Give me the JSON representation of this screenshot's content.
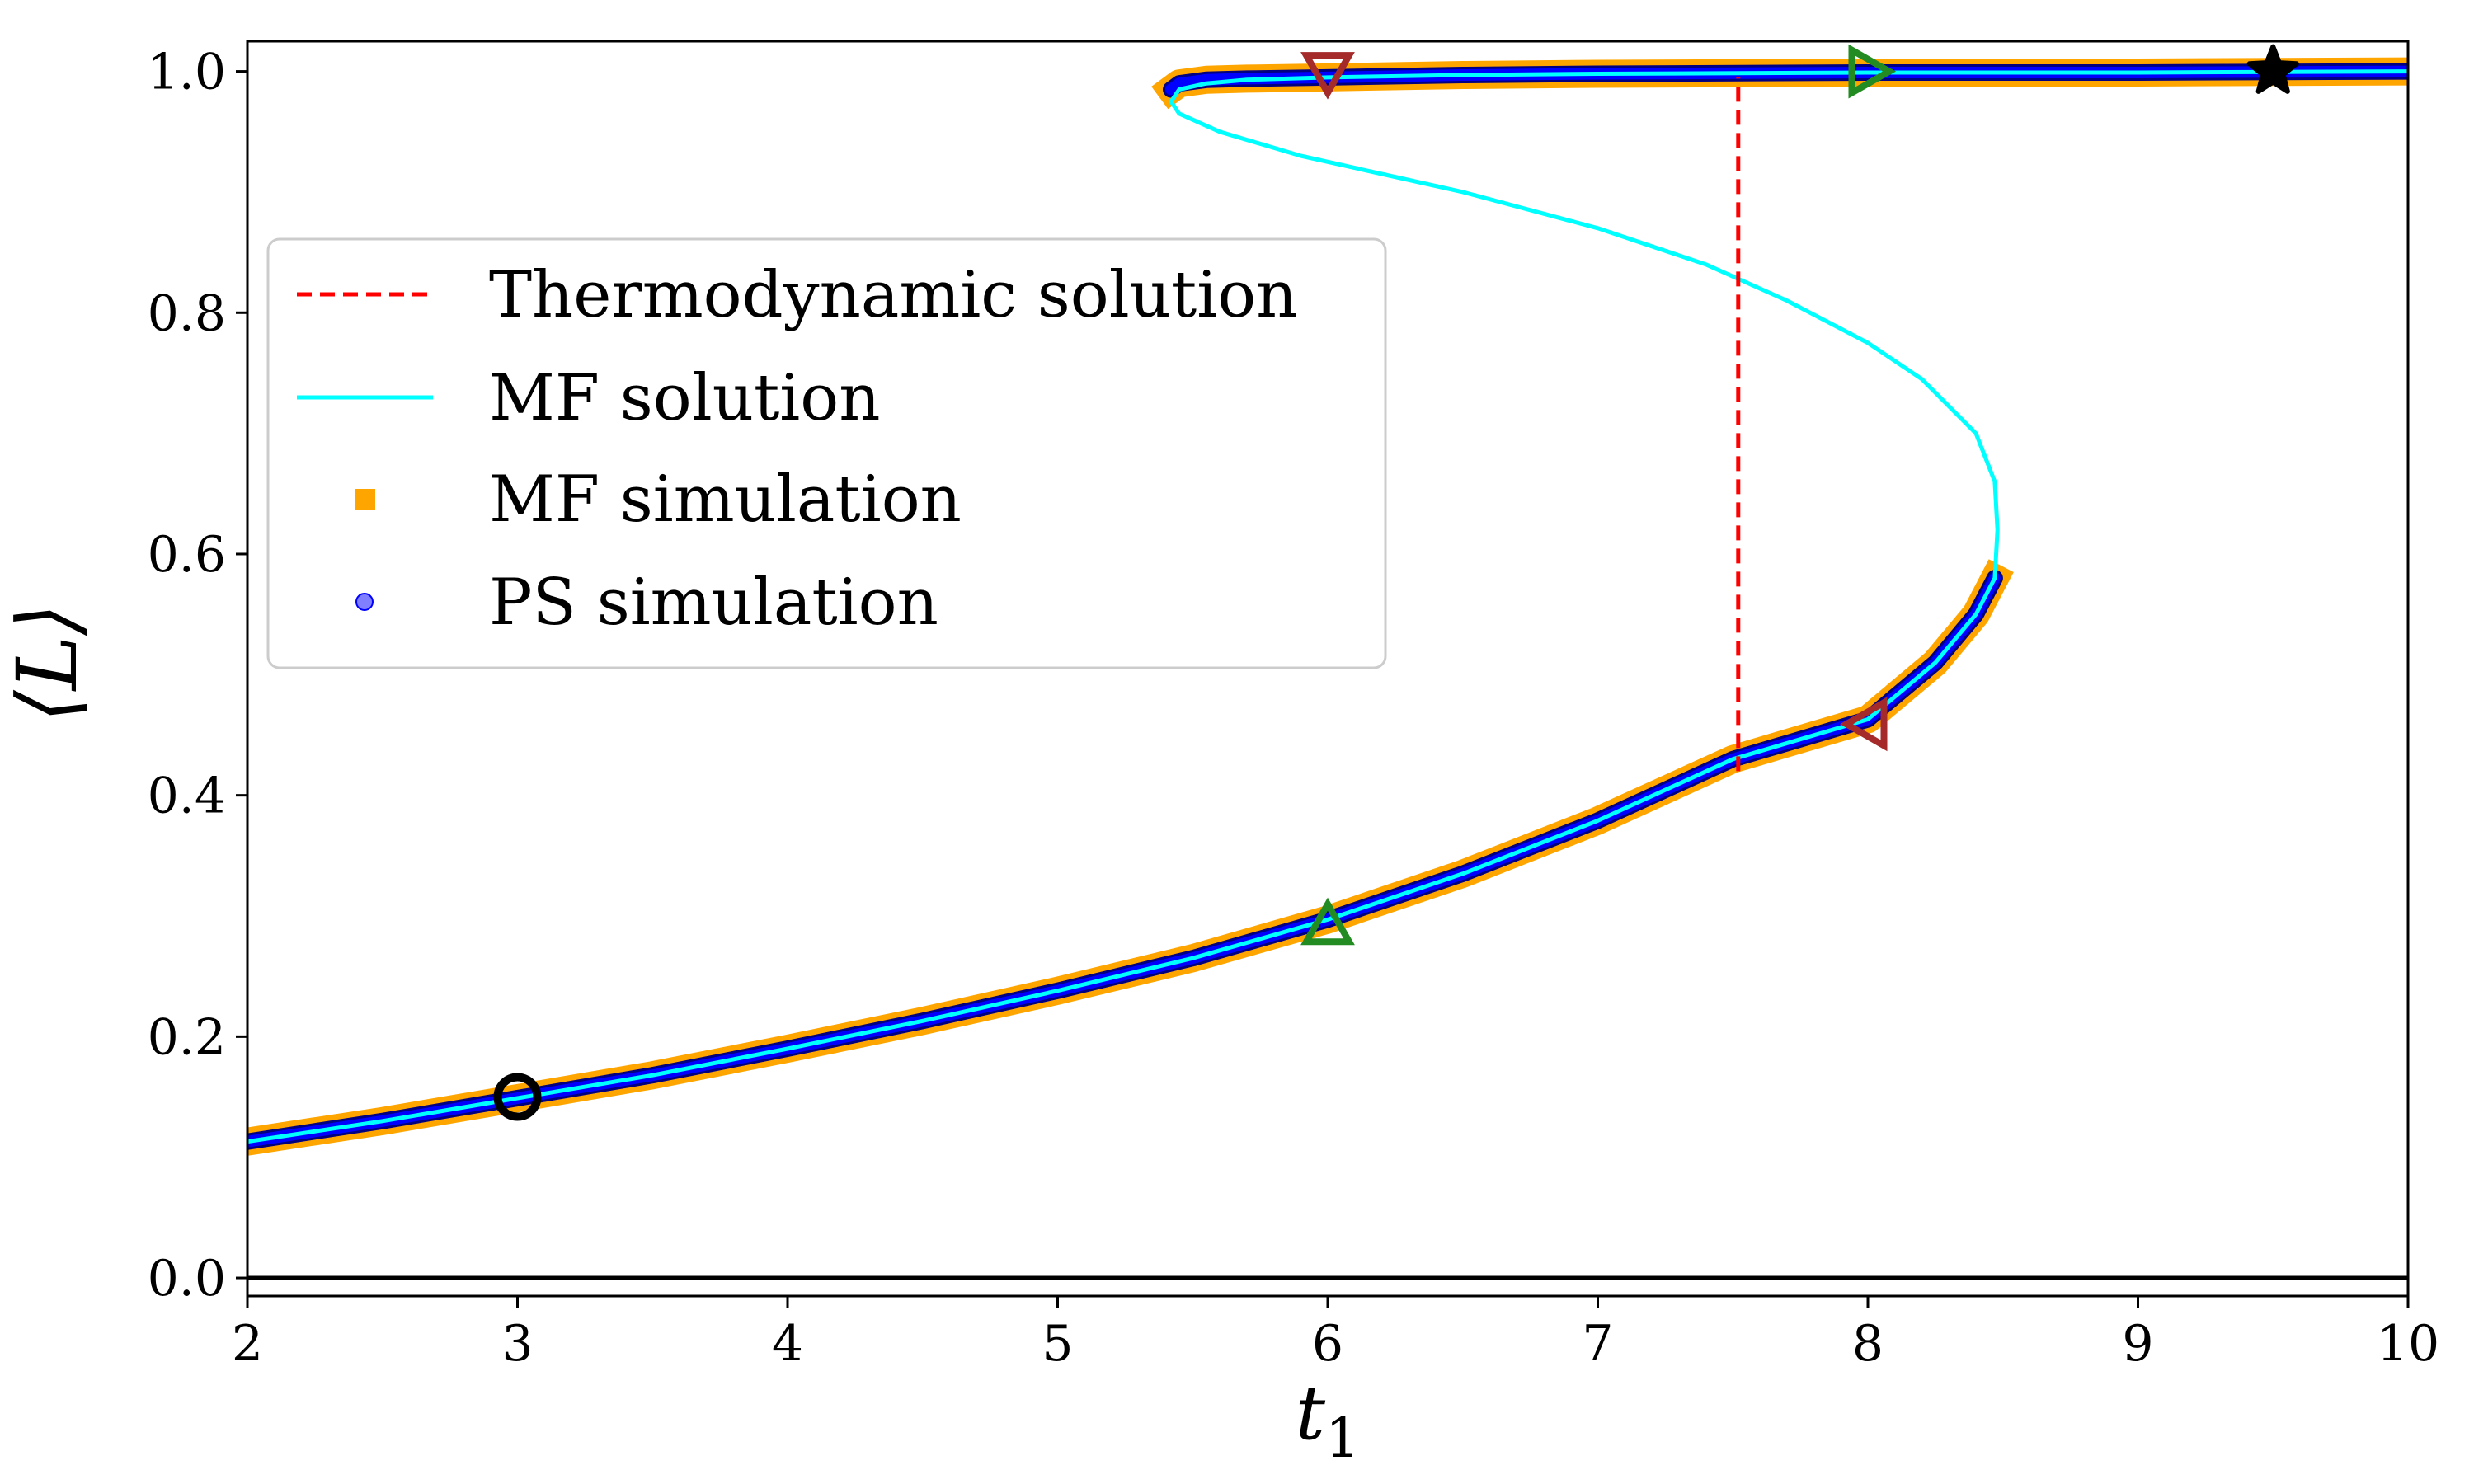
{
  "chart_data": {
    "type": "line",
    "xlabel": "t",
    "xlabel_sub": "1",
    "ylabel": "⟨L⟩",
    "xlim": [
      2,
      10
    ],
    "ylim": [
      -0.015,
      1.025
    ],
    "xticks": [
      2,
      3,
      4,
      5,
      6,
      7,
      8,
      9,
      10
    ],
    "xtick_labels": [
      "2",
      "3",
      "4",
      "5",
      "6",
      "7",
      "8",
      "9",
      "10"
    ],
    "yticks": [
      0.0,
      0.2,
      0.4,
      0.6,
      0.8,
      1.0
    ],
    "ytick_labels": [
      "0.0",
      "0.2",
      "0.4",
      "0.6",
      "0.8",
      "1.0"
    ],
    "grid": false,
    "legend_position": "center-left",
    "zero_line": {
      "y": 0.0,
      "color": "#000000"
    },
    "series": [
      {
        "name": "Thermodynamic solution",
        "style": "dashed",
        "color": "#ff0000",
        "x": [
          7.52,
          7.52
        ],
        "y": [
          0.42,
          0.995
        ]
      },
      {
        "name": "MF solution",
        "style": "solid",
        "color": "#00ffff",
        "x": [
          2.0,
          2.5,
          3.0,
          3.5,
          4.0,
          4.5,
          5.0,
          5.5,
          6.0,
          6.5,
          7.0,
          7.5,
          8.0,
          8.25,
          8.4,
          8.47,
          8.48,
          8.47,
          8.4,
          8.2,
          8.0,
          7.7,
          7.4,
          7.0,
          6.5,
          6.2,
          5.9,
          5.6,
          5.45,
          5.42,
          5.45,
          5.55,
          5.7,
          6.0,
          6.5,
          7.0,
          8.0,
          9.0,
          10.0
        ],
        "y": [
          0.113,
          0.13,
          0.149,
          0.168,
          0.19,
          0.213,
          0.238,
          0.265,
          0.297,
          0.335,
          0.379,
          0.43,
          0.463,
          0.51,
          0.55,
          0.58,
          0.62,
          0.66,
          0.7,
          0.745,
          0.775,
          0.81,
          0.84,
          0.87,
          0.9,
          0.915,
          0.93,
          0.95,
          0.965,
          0.975,
          0.985,
          0.99,
          0.993,
          0.995,
          0.997,
          0.998,
          0.999,
          0.999,
          1.0
        ]
      },
      {
        "name": "MF simulation",
        "style": "markers",
        "marker": "square",
        "color": "#ffa500",
        "lower_x": [
          2.0,
          2.5,
          3.0,
          3.5,
          4.0,
          4.5,
          5.0,
          5.5,
          6.0,
          6.5,
          7.0,
          7.5,
          8.0,
          8.25,
          8.4,
          8.47
        ],
        "lower_y": [
          0.113,
          0.13,
          0.149,
          0.168,
          0.19,
          0.213,
          0.238,
          0.265,
          0.297,
          0.335,
          0.379,
          0.43,
          0.463,
          0.51,
          0.55,
          0.58
        ],
        "upper_x": [
          5.42,
          5.45,
          5.55,
          5.7,
          6.0,
          6.5,
          7.0,
          8.0,
          9.0,
          10.0
        ],
        "upper_y": [
          0.985,
          0.99,
          0.993,
          0.994,
          0.995,
          0.997,
          0.998,
          0.999,
          0.999,
          1.0
        ]
      },
      {
        "name": "PS simulation",
        "style": "markers",
        "marker": "circle",
        "color": "#0000ff",
        "lower_x": [
          2.0,
          2.5,
          3.0,
          3.5,
          4.0,
          4.5,
          5.0,
          5.5,
          6.0,
          6.5,
          7.0,
          7.5,
          8.0,
          8.25,
          8.4,
          8.47
        ],
        "lower_y": [
          0.113,
          0.13,
          0.149,
          0.168,
          0.19,
          0.213,
          0.238,
          0.265,
          0.297,
          0.335,
          0.379,
          0.43,
          0.463,
          0.51,
          0.55,
          0.58
        ],
        "upper_x": [
          5.42,
          5.45,
          5.55,
          5.7,
          6.0,
          6.5,
          7.0,
          8.0,
          9.0,
          10.0
        ],
        "upper_y": [
          0.985,
          0.99,
          0.993,
          0.994,
          0.995,
          0.997,
          0.998,
          0.999,
          0.999,
          1.0
        ]
      }
    ],
    "markers": [
      {
        "shape": "circle",
        "x": 3.0,
        "y": 0.15,
        "color": "#000000"
      },
      {
        "shape": "triangle-up",
        "x": 6.0,
        "y": 0.292,
        "color": "#228b22"
      },
      {
        "shape": "triangle-down",
        "x": 6.0,
        "y": 1.0,
        "color": "#a52a2a"
      },
      {
        "shape": "triangle-left",
        "x": 8.0,
        "y": 0.459,
        "color": "#a52a2a"
      },
      {
        "shape": "triangle-right",
        "x": 8.0,
        "y": 1.0,
        "color": "#228b22"
      },
      {
        "shape": "star",
        "x": 9.5,
        "y": 1.0,
        "color": "#000000"
      }
    ]
  }
}
